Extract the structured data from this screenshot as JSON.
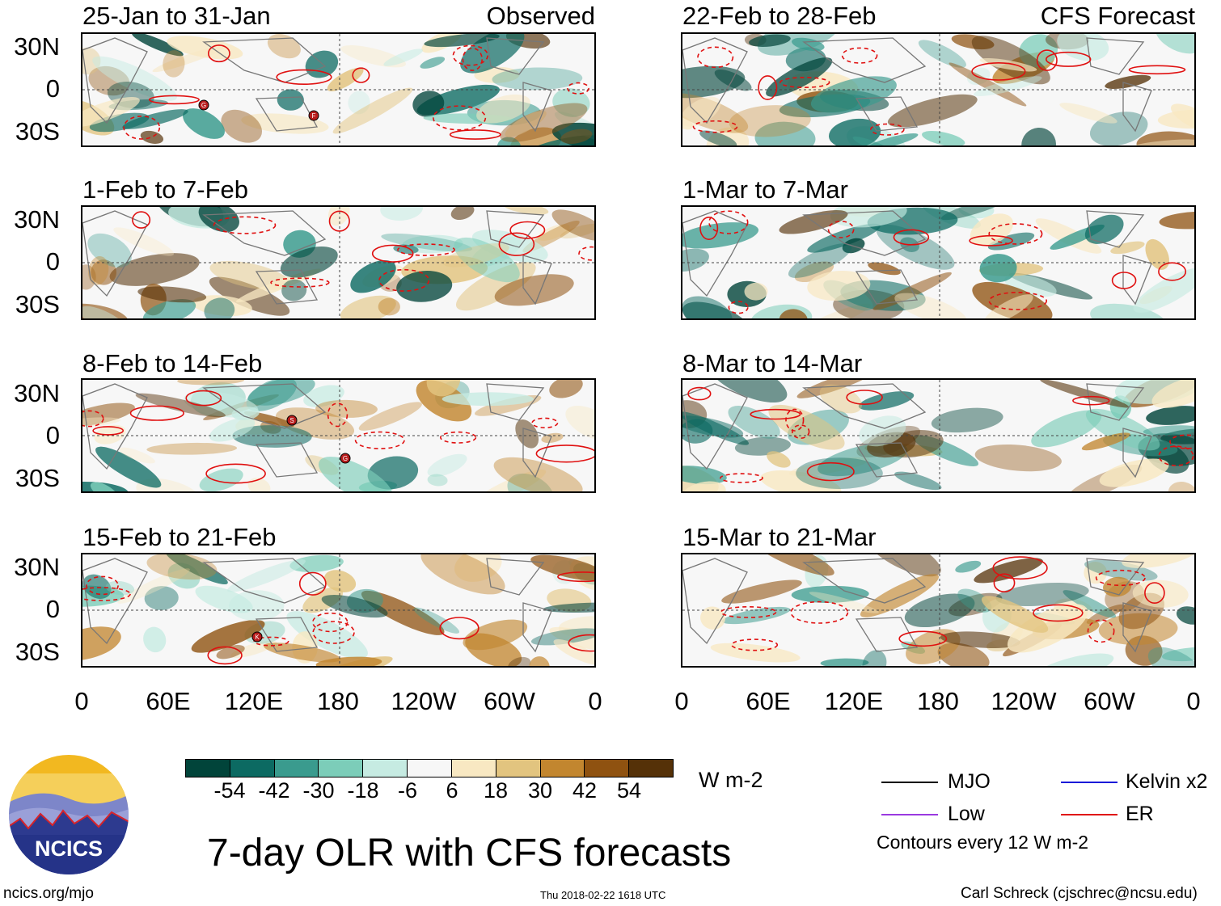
{
  "panels": {
    "p1": {
      "label": "25-Jan to 31-Jan",
      "tag": "Observed"
    },
    "p2": {
      "label": "1-Feb to 7-Feb"
    },
    "p3": {
      "label": "8-Feb to 14-Feb"
    },
    "p4": {
      "label": "15-Feb to 21-Feb"
    },
    "p5": {
      "label": "22-Feb to 28-Feb",
      "tag": "CFS Forecast"
    },
    "p6": {
      "label": "1-Mar to 7-Mar"
    },
    "p7": {
      "label": "8-Mar to 14-Mar"
    },
    "p8": {
      "label": "15-Mar to 21-Mar"
    }
  },
  "lat_labels": [
    "30N",
    "0",
    "30S"
  ],
  "lon_labels": [
    "0",
    "60E",
    "120E",
    "180",
    "120W",
    "60W",
    "0"
  ],
  "storm_markers": [
    "G",
    "F",
    "S",
    "G",
    "K"
  ],
  "colorbar": {
    "colors": [
      "#01443a",
      "#0c6a62",
      "#3a9b8e",
      "#7ccdb9",
      "#c6ebe2",
      "#f7f7f7",
      "#f8e8c2",
      "#e2c47f",
      "#c2862f",
      "#8f5210",
      "#553108"
    ],
    "ticks": [
      "-54",
      "-42",
      "-30",
      "-18",
      "-6",
      "6",
      "18",
      "30",
      "42",
      "54"
    ],
    "units": "W m-2"
  },
  "title": "7-day OLR with CFS forecasts",
  "legend": {
    "mjo": {
      "label": "MJO",
      "color": "#000000"
    },
    "kelvin": {
      "label": "Kelvin x2",
      "color": "#1a1ad8"
    },
    "low": {
      "label": "Low",
      "color": "#9a39e0"
    },
    "er": {
      "label": "ER",
      "color": "#e01010"
    },
    "note": "Contours every 12 W m-2"
  },
  "logo": {
    "text": "NCICS"
  },
  "footer": {
    "url": "ncics.org/mjo",
    "timestamp": "Thu 2018-02-22 1618 UTC",
    "credit": "Carl Schreck (cjschrec@ncsu.edu)"
  }
}
